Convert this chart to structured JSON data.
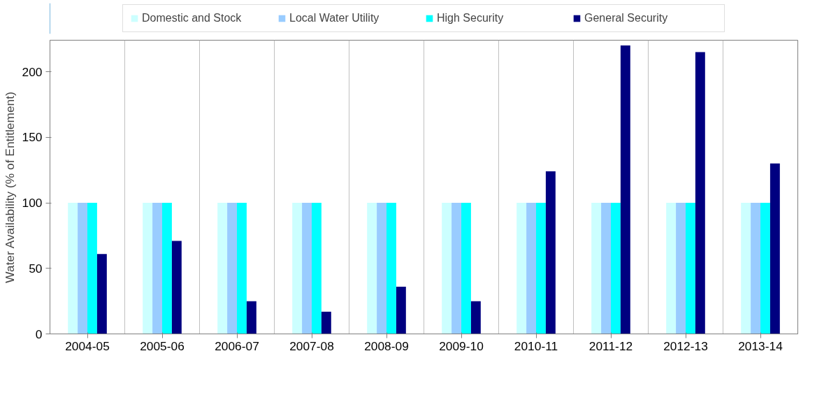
{
  "chart_data": {
    "type": "bar",
    "ylabel": "Water Availability (% of Entitlement)",
    "categories": [
      "2004-05",
      "2005-06",
      "2006-07",
      "2007-08",
      "2008-09",
      "2009-10",
      "2010-11",
      "2011-12",
      "2012-13",
      "2013-14"
    ],
    "series": [
      {
        "name": "Domestic and Stock",
        "color": "#ccffff",
        "values": [
          100,
          100,
          100,
          100,
          100,
          100,
          100,
          100,
          100,
          100
        ]
      },
      {
        "name": "Local Water Utility",
        "color": "#99ccff",
        "values": [
          100,
          100,
          100,
          100,
          100,
          100,
          100,
          100,
          100,
          100
        ]
      },
      {
        "name": "High Security",
        "color": "#00ffff",
        "values": [
          100,
          100,
          100,
          100,
          100,
          100,
          100,
          100,
          100,
          100
        ]
      },
      {
        "name": "General Security",
        "color": "#000080",
        "values": [
          61,
          71,
          25,
          17,
          36,
          25,
          124,
          220,
          215,
          130
        ]
      }
    ],
    "ylim": [
      0,
      224
    ],
    "yticks": [
      0,
      50,
      100,
      150,
      200
    ],
    "grid": "x",
    "legend": "top"
  }
}
